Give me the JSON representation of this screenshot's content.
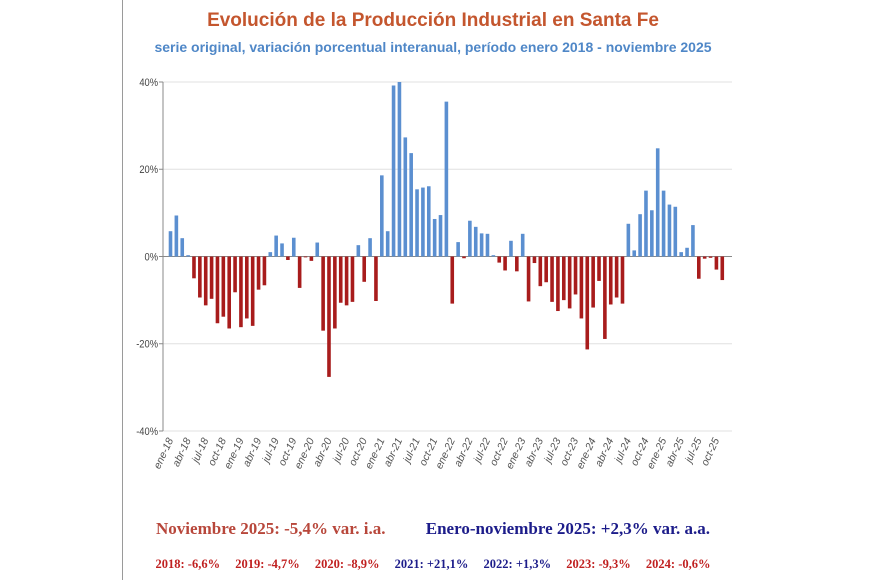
{
  "colors": {
    "title": "#c4562e",
    "subtitle": "#4f87c7",
    "positive": "#5b8fd0",
    "negative": "#a81c1c",
    "summary_red": "#b8473b",
    "summary_blue": "#1c1c8a",
    "year_red": "#c02020",
    "year_blue": "#1c1c8a"
  },
  "chart_data": {
    "type": "bar",
    "title": "Evolución de la Producción Industrial en Santa Fe",
    "subtitle": "serie original, variación porcentual interanual, período enero 2018 - noviembre 2025",
    "ylim": [
      -40,
      40
    ],
    "yticks": [
      40,
      20,
      0,
      -20,
      -40
    ],
    "ytick_labels": [
      "40%",
      "20%",
      "0%",
      "-20%",
      "-40%"
    ],
    "grid": true,
    "xtick_labels": [
      "ene-18",
      "abr-18",
      "jul-18",
      "oct-18",
      "ene-19",
      "abr-19",
      "jul-19",
      "oct-19",
      "ene-20",
      "abr-20",
      "jul-20",
      "oct-20",
      "ene-21",
      "abr-21",
      "jul-21",
      "oct-21",
      "ene-22",
      "abr-22",
      "jul-22",
      "oct-22",
      "ene-23",
      "abr-23",
      "jul-23",
      "oct-23",
      "ene-24",
      "abr-24",
      "jul-24",
      "oct-24",
      "ene-25",
      "abr-25",
      "jul-25",
      "oct-25"
    ],
    "x_start": "ene-18",
    "x_end": "nov-25",
    "values": [
      5.8,
      9.4,
      4.2,
      0.3,
      -5.0,
      -9.4,
      -11.2,
      -9.7,
      -15.3,
      -13.8,
      -16.5,
      -8.2,
      -16.2,
      -14.2,
      -15.9,
      -7.6,
      -6.6,
      1.0,
      4.8,
      3.0,
      -0.8,
      4.3,
      -7.2,
      -0.2,
      -1.0,
      3.2,
      -17.0,
      -27.6,
      -16.5,
      -10.6,
      -11.2,
      -10.4,
      2.6,
      -5.8,
      4.2,
      -10.2,
      18.6,
      5.8,
      39.2,
      40.0,
      27.3,
      23.7,
      15.4,
      15.8,
      16.1,
      8.6,
      9.5,
      35.5,
      -10.8,
      3.3,
      -0.4,
      8.2,
      6.8,
      5.3,
      5.2,
      0.3,
      -1.4,
      -3.2,
      3.6,
      -3.4,
      5.2,
      -10.3,
      -1.5,
      -6.8,
      -5.9,
      -10.4,
      -12.5,
      -10.0,
      -11.9,
      -8.7,
      -14.2,
      -21.3,
      -11.7,
      -5.6,
      -18.9,
      -11.0,
      -9.4,
      -10.8,
      7.5,
      1.4,
      9.7,
      15.1,
      10.6,
      24.8,
      15.1,
      11.9,
      11.4,
      1.0,
      2.0,
      7.2,
      -5.1,
      -0.5,
      -0.3,
      -3.0,
      -5.4
    ]
  },
  "summary": {
    "month": "Noviembre 2025: -5,4% var. i.a.",
    "ytd": "Enero-noviembre 2025: +2,3% var. a.a."
  },
  "annual": [
    {
      "label": "2018: -6,6%",
      "sign": "neg"
    },
    {
      "label": "2019: -4,7%",
      "sign": "neg"
    },
    {
      "label": "2020: -8,9%",
      "sign": "neg"
    },
    {
      "label": "2021: +21,1%",
      "sign": "pos"
    },
    {
      "label": "2022: +1,3%",
      "sign": "pos"
    },
    {
      "label": "2023: -9,3%",
      "sign": "neg"
    },
    {
      "label": "2024: -0,6%",
      "sign": "neg"
    }
  ]
}
